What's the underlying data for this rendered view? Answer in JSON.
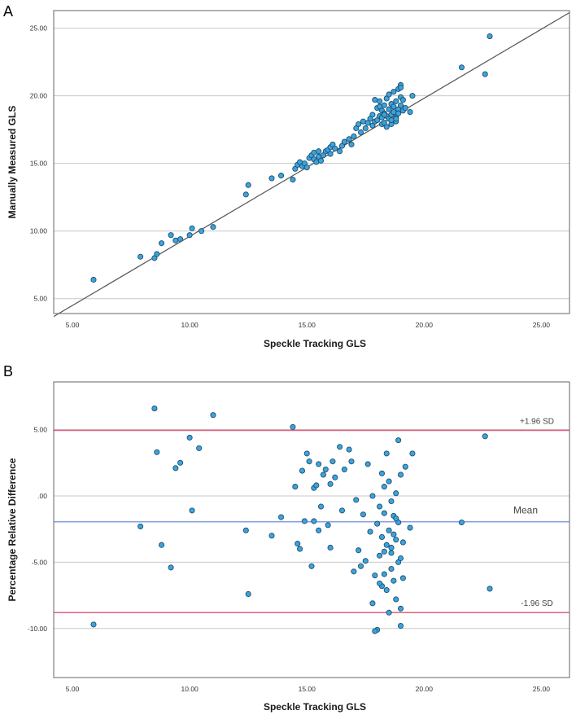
{
  "chart_data": [
    {
      "type": "scatter",
      "panel_label": "A",
      "title": "",
      "xlabel": "Speckle Tracking GLS",
      "ylabel": "Manually Measured GLS",
      "xlim": [
        4.2,
        26.2
      ],
      "ylim": [
        3.9,
        26.3
      ],
      "xticks": [
        "5.00",
        "10.00",
        "15.00",
        "20.00",
        "25.00"
      ],
      "yticks": [
        "5.00",
        "10.00",
        "15.00",
        "20.00",
        "25.00"
      ],
      "grid": "horizontal",
      "fit_line": {
        "x": [
          4.2,
          26.2
        ],
        "y": [
          3.68,
          26.15
        ]
      },
      "points": {
        "x": [
          5.9,
          7.9,
          8.5,
          8.6,
          8.8,
          9.2,
          9.4,
          9.6,
          10.0,
          10.1,
          10.5,
          11.0,
          12.4,
          12.5,
          13.5,
          13.9,
          14.4,
          14.5,
          14.6,
          14.7,
          14.8,
          14.9,
          15.0,
          15.1,
          15.2,
          15.3,
          15.3,
          15.4,
          15.5,
          15.5,
          15.6,
          15.7,
          15.8,
          15.9,
          16.0,
          16.0,
          16.1,
          16.2,
          16.4,
          16.5,
          16.6,
          16.8,
          16.9,
          17.0,
          17.1,
          17.2,
          17.3,
          17.4,
          17.5,
          17.6,
          17.7,
          17.8,
          17.8,
          17.9,
          18.0,
          18.0,
          18.1,
          18.1,
          18.2,
          18.2,
          18.2,
          18.3,
          18.3,
          18.3,
          18.4,
          18.4,
          18.4,
          18.5,
          18.5,
          18.5,
          18.6,
          18.6,
          18.6,
          18.7,
          18.7,
          18.7,
          18.8,
          18.8,
          18.8,
          18.9,
          18.9,
          18.9,
          19.0,
          19.0,
          19.0,
          19.1,
          19.1,
          19.2,
          19.4,
          19.5,
          17.9,
          18.1,
          18.3,
          18.6,
          18.8,
          19.0,
          21.6,
          22.6,
          22.8
        ],
        "y": [
          6.4,
          8.1,
          8.0,
          8.3,
          9.1,
          9.7,
          9.3,
          9.4,
          9.7,
          10.2,
          10.0,
          10.3,
          12.7,
          13.4,
          13.9,
          14.1,
          13.8,
          14.6,
          14.9,
          15.1,
          14.8,
          15.0,
          14.7,
          15.4,
          15.6,
          15.3,
          15.8,
          15.1,
          15.5,
          15.9,
          15.2,
          15.6,
          15.9,
          16.0,
          16.2,
          15.7,
          16.4,
          16.1,
          15.9,
          16.3,
          16.6,
          16.8,
          16.4,
          17.0,
          17.6,
          17.9,
          17.3,
          18.1,
          17.6,
          18.0,
          18.3,
          17.8,
          18.6,
          18.1,
          18.2,
          19.1,
          18.5,
          19.6,
          18.4,
          17.9,
          18.9,
          18.7,
          19.3,
          18.0,
          18.5,
          19.8,
          17.7,
          19.0,
          18.3,
          20.1,
          18.6,
          19.4,
          17.9,
          18.8,
          19.2,
          20.3,
          18.4,
          19.6,
          18.1,
          19.0,
          20.5,
          18.7,
          19.9,
          19.3,
          20.8,
          18.9,
          19.7,
          19.1,
          18.8,
          20.0,
          19.7,
          19.2,
          18.6,
          18.2,
          18.3,
          20.6,
          22.1,
          21.6,
          24.4
        ]
      }
    },
    {
      "type": "scatter",
      "panel_label": "B",
      "title": "",
      "xlabel": "Speckle Tracking GLS",
      "ylabel": "Percentage Relative Difference",
      "xlim": [
        4.2,
        26.2
      ],
      "ylim": [
        -13.7,
        8.6
      ],
      "xticks": [
        "5.00",
        "10.00",
        "15.00",
        "20.00",
        "25.00"
      ],
      "yticks": [
        "-10.00",
        "-5.00",
        ".00",
        "5.00"
      ],
      "grid": "horizontal",
      "reference_lines": [
        {
          "name": "+1.96 SD",
          "value": 4.95,
          "color": "#e06080"
        },
        {
          "name": "Mean",
          "value": -1.95,
          "color": "#8a9ee0"
        },
        {
          "name": "-1.96 SD",
          "value": -8.8,
          "color": "#e06080"
        }
      ],
      "points": {
        "x": [
          5.9,
          7.9,
          8.5,
          8.6,
          8.8,
          9.2,
          9.4,
          9.6,
          10.0,
          10.1,
          10.4,
          11.0,
          12.4,
          12.5,
          13.5,
          13.9,
          14.4,
          14.5,
          14.6,
          14.7,
          14.8,
          14.9,
          15.0,
          15.1,
          15.2,
          15.3,
          15.3,
          15.4,
          15.5,
          15.5,
          15.6,
          15.7,
          15.8,
          15.9,
          16.0,
          16.0,
          16.1,
          16.2,
          16.4,
          16.5,
          16.6,
          16.8,
          16.9,
          17.0,
          17.1,
          17.2,
          17.3,
          17.4,
          17.5,
          17.6,
          17.7,
          17.8,
          17.8,
          17.9,
          18.0,
          18.0,
          18.1,
          18.1,
          18.2,
          18.2,
          18.2,
          18.3,
          18.3,
          18.3,
          18.4,
          18.4,
          18.4,
          18.5,
          18.5,
          18.5,
          18.6,
          18.6,
          18.6,
          18.7,
          18.7,
          18.7,
          18.8,
          18.8,
          18.8,
          18.9,
          18.9,
          18.9,
          19.0,
          19.0,
          19.0,
          19.1,
          19.1,
          19.2,
          19.4,
          19.5,
          17.9,
          18.1,
          18.3,
          18.6,
          18.8,
          19.0,
          21.6,
          22.6,
          22.8
        ],
        "y": [
          -9.7,
          -2.3,
          6.6,
          3.3,
          -3.7,
          -5.4,
          2.1,
          2.5,
          4.4,
          -1.1,
          3.6,
          6.1,
          -2.6,
          -7.4,
          -3.0,
          -1.6,
          5.2,
          0.7,
          -3.6,
          -4.0,
          1.9,
          -1.9,
          3.2,
          2.6,
          -5.3,
          0.6,
          -1.9,
          0.8,
          2.4,
          -2.6,
          -0.8,
          1.6,
          2.0,
          -2.2,
          0.9,
          -3.9,
          2.6,
          1.4,
          3.7,
          -1.1,
          2.0,
          3.5,
          2.6,
          -5.7,
          -0.3,
          -4.1,
          -5.3,
          -1.4,
          -4.9,
          2.4,
          -2.7,
          0.0,
          -8.1,
          -6.0,
          -10.1,
          -2.1,
          -0.8,
          -4.5,
          1.7,
          -6.8,
          -3.1,
          -5.9,
          0.7,
          -1.3,
          -3.7,
          3.2,
          -7.1,
          -2.6,
          -8.8,
          1.1,
          -4.3,
          -0.4,
          -5.5,
          -2.9,
          -6.4,
          -1.5,
          0.2,
          -3.3,
          -7.8,
          -5.0,
          4.2,
          -2.0,
          -9.8,
          -4.7,
          1.6,
          -6.2,
          -3.5,
          2.2,
          -2.4,
          3.2,
          -10.2,
          -6.6,
          -4.2,
          -3.9,
          -1.7,
          -8.5,
          -2.0,
          4.5,
          -7.0
        ]
      }
    }
  ]
}
